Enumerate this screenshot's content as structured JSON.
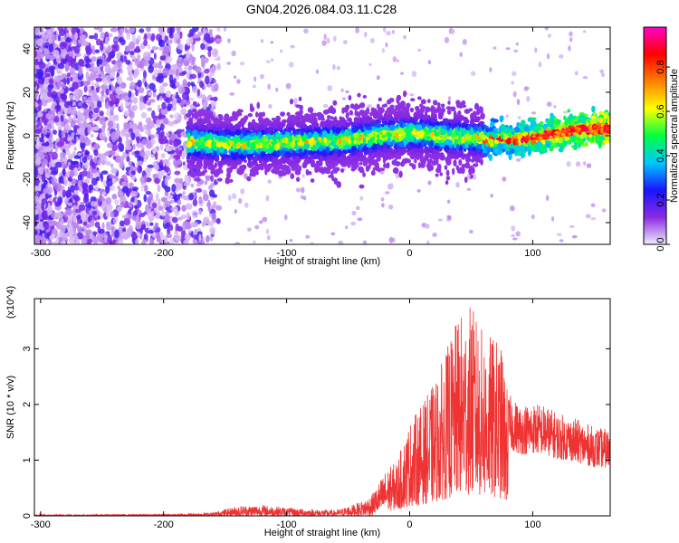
{
  "title": "GN04.2026.084.03.11.C28",
  "chart_data": [
    {
      "type": "heatmap",
      "name": "spectrogram",
      "xlabel": "Height of straight line (km)",
      "ylabel": "Frequency (Hz)",
      "xlim": [
        -305,
        163
      ],
      "ylim": [
        -50,
        50
      ],
      "xticks": [
        -300,
        -200,
        -100,
        0,
        100
      ],
      "xtick_labels": [
        "-300",
        "-200",
        "-100",
        "0",
        "100"
      ],
      "yticks": [
        -40,
        -20,
        0,
        20,
        40
      ],
      "ytick_labels": [
        "-40",
        "-20",
        "0",
        "20",
        "40"
      ],
      "ridge": {
        "x": [
          -175,
          -150,
          -125,
          -100,
          -75,
          -50,
          -25,
          0,
          25,
          50,
          65,
          80,
          100,
          120,
          140,
          163
        ],
        "y": [
          -3,
          -4,
          -4,
          -3,
          -3,
          -2,
          0,
          1,
          0,
          -1,
          -2,
          -2,
          -1,
          1,
          3,
          3
        ]
      },
      "colorbar": {
        "label": "Normalized spectral amplitude",
        "range": [
          0,
          0.98
        ],
        "ticks": [
          0.0,
          0.2,
          0.4,
          0.6,
          0.8
        ],
        "tick_labels": [
          "0.0",
          "0.2",
          "0.4",
          "0.6",
          "0.8"
        ],
        "colors": [
          "#f2ecff",
          "#8a2be2",
          "#1a14ff",
          "#00c8ff",
          "#00ff40",
          "#ffff00",
          "#ff8000",
          "#ff0000",
          "#ff00c8"
        ]
      },
      "grid": false
    },
    {
      "type": "line",
      "name": "snr",
      "xlabel": "Height of straight line (km)",
      "ylabel": "SNR (10 * v/v)",
      "yscale_label": "(x10^4)",
      "xlim": [
        -305,
        163
      ],
      "ylim": [
        0,
        3.9
      ],
      "xticks": [
        -300,
        -200,
        -100,
        0,
        100
      ],
      "xtick_labels": [
        "-300",
        "-200",
        "-100",
        "0",
        "100"
      ],
      "yticks": [
        0,
        1,
        2,
        3
      ],
      "ytick_labels": [
        "0",
        "1",
        "2",
        "3"
      ],
      "color": "#ee3333",
      "envelope": {
        "x": [
          -305,
          -200,
          -160,
          -140,
          -120,
          -100,
          -80,
          -60,
          -40,
          -30,
          -20,
          -10,
          0,
          10,
          20,
          30,
          40,
          50,
          60,
          70,
          75,
          80,
          90,
          100,
          110,
          120,
          130,
          140,
          150,
          163
        ],
        "y": [
          0.02,
          0.03,
          0.06,
          0.18,
          0.2,
          0.15,
          0.12,
          0.1,
          0.25,
          0.4,
          0.8,
          1.0,
          1.7,
          2.0,
          2.4,
          3.0,
          3.6,
          3.8,
          3.3,
          3.2,
          3.0,
          2.2,
          2.0,
          2.05,
          2.0,
          1.85,
          1.8,
          1.7,
          1.6,
          1.55
        ]
      },
      "grid": false
    }
  ]
}
